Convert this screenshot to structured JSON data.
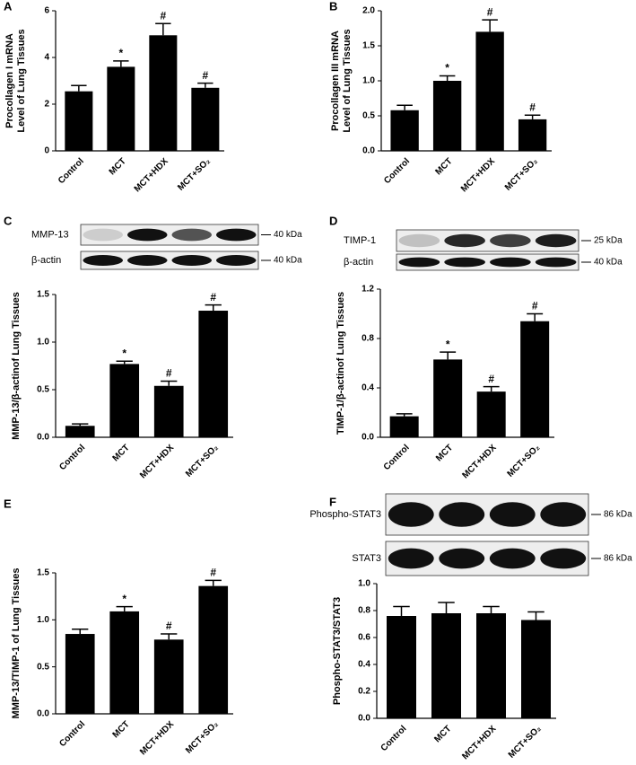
{
  "chart_data": [
    {
      "type": "bar",
      "panel": "A",
      "ylabel": [
        "Procollagen I mRNA",
        "Level of Lung Tissues"
      ],
      "categories": [
        "Control",
        "MCT",
        "MCT+HDX",
        "MCT+SO₂"
      ],
      "values": [
        2.55,
        3.6,
        4.95,
        2.7
      ],
      "errors": [
        0.25,
        0.25,
        0.5,
        0.2
      ],
      "markers": [
        null,
        "*",
        "#",
        "#"
      ],
      "color": "#000000",
      "ylim": [
        0,
        6
      ],
      "yticks": [
        0,
        2,
        4,
        6
      ]
    },
    {
      "type": "bar",
      "panel": "B",
      "ylabel": [
        "Procollagen III mRNA",
        "Level of Lung Tissues"
      ],
      "categories": [
        "Control",
        "MCT",
        "MCT+HDX",
        "MCT+SO₂"
      ],
      "values": [
        0.58,
        1.0,
        1.7,
        0.45
      ],
      "errors": [
        0.07,
        0.07,
        0.17,
        0.06
      ],
      "markers": [
        null,
        "*",
        "#",
        "#"
      ],
      "color": "#000000",
      "ylim": [
        0,
        2
      ],
      "yticks": [
        {
          "value": 0,
          "label": "0.0"
        },
        0.5,
        {
          "value": 1,
          "label": "1.0"
        },
        1.5,
        {
          "value": 2,
          "label": "2.0"
        }
      ]
    },
    {
      "type": "bar",
      "panel": "C",
      "ylabel": [
        "MMP-13/β-actinof Lung Tissues"
      ],
      "blots": [
        {
          "label": "MMP-13",
          "size": "40 kDa"
        },
        {
          "label": "β-actin",
          "size": "40 kDa"
        }
      ],
      "categories": [
        "Control",
        "MCT",
        "MCT+HDX",
        "MCT+SO₂"
      ],
      "values": [
        0.12,
        0.77,
        0.54,
        1.33
      ],
      "errors": [
        0.02,
        0.03,
        0.05,
        0.06
      ],
      "markers": [
        null,
        "*",
        "#",
        "#"
      ],
      "color": "#000000",
      "ylim": [
        0,
        1.5
      ],
      "yticks": [
        {
          "value": 0,
          "label": "0.0"
        },
        0.5,
        {
          "value": 1,
          "label": "1.0"
        },
        1.5
      ]
    },
    {
      "type": "bar",
      "panel": "D",
      "ylabel": [
        "TIMP-1/β-actinof Lung Tissues"
      ],
      "blots": [
        {
          "label": "TIMP-1",
          "size": "25 kDa"
        },
        {
          "label": "β-actin",
          "size": "40 kDa"
        }
      ],
      "categories": [
        "Control",
        "MCT",
        "MCT+HDX",
        "MCT+SO₂"
      ],
      "values": [
        0.17,
        0.63,
        0.37,
        0.94
      ],
      "errors": [
        0.02,
        0.06,
        0.04,
        0.06
      ],
      "markers": [
        null,
        "*",
        "#",
        "#"
      ],
      "color": "#000000",
      "ylim": [
        0,
        1.2
      ],
      "yticks": [
        {
          "value": 0,
          "label": "0.0"
        },
        0.4,
        0.8,
        1.2
      ]
    },
    {
      "type": "bar",
      "panel": "E",
      "ylabel": [
        "MMP-13/TIMP-1 of Lung Tissues"
      ],
      "categories": [
        "Control",
        "MCT",
        "MCT+HDX",
        "MCT+SO₂"
      ],
      "values": [
        0.85,
        1.09,
        0.79,
        1.36
      ],
      "errors": [
        0.05,
        0.05,
        0.06,
        0.06
      ],
      "markers": [
        null,
        "*",
        "#",
        "#"
      ],
      "color": "#000000",
      "ylim": [
        0,
        1.5
      ],
      "yticks": [
        {
          "value": 0,
          "label": "0.0"
        },
        0.5,
        {
          "value": 1,
          "label": "1.0"
        },
        1.5
      ]
    },
    {
      "type": "bar",
      "panel": "F",
      "ylabel": [
        "Phospho-STAT3/STAT3"
      ],
      "blots": [
        {
          "label": "Phospho-STAT3",
          "size": "86 kDa"
        },
        {
          "label": "STAT3",
          "size": "86 kDa"
        }
      ],
      "categories": [
        "Control",
        "MCT",
        "MCT+HDX",
        "MCT+SO₂"
      ],
      "values": [
        0.76,
        0.78,
        0.78,
        0.73
      ],
      "errors": [
        0.07,
        0.08,
        0.05,
        0.06
      ],
      "color": "#000000",
      "ylim": [
        0,
        1
      ],
      "yticks": [
        {
          "value": 0,
          "label": "0.0"
        },
        0.2,
        0.4,
        0.6,
        0.8,
        {
          "value": 1,
          "label": "1.0"
        }
      ]
    }
  ]
}
